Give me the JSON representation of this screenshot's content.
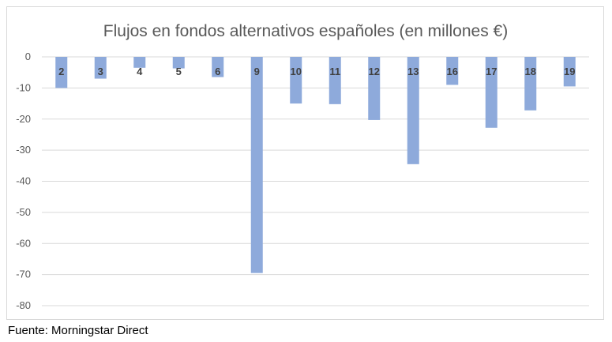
{
  "chart_data": {
    "type": "bar",
    "title": "Flujos en fondos alternativos españoles (en millones €)",
    "categories": [
      "2",
      "3",
      "4",
      "5",
      "6",
      "9",
      "10",
      "11",
      "12",
      "13",
      "16",
      "17",
      "18",
      "19"
    ],
    "values": [
      -10,
      -7,
      -3.5,
      -3.7,
      -6.5,
      -69.5,
      -15,
      -15.2,
      -20.3,
      -34.5,
      -9,
      -22.8,
      -17.2,
      -9.5
    ],
    "ylim": [
      -80,
      0
    ],
    "yticks": [
      0,
      -10,
      -20,
      -30,
      -40,
      -50,
      -60,
      -70,
      -80
    ],
    "grid": true,
    "xlabel": "",
    "ylabel": "",
    "bar_color": "#8eaadb"
  },
  "source": "Fuente: Morningstar Direct"
}
